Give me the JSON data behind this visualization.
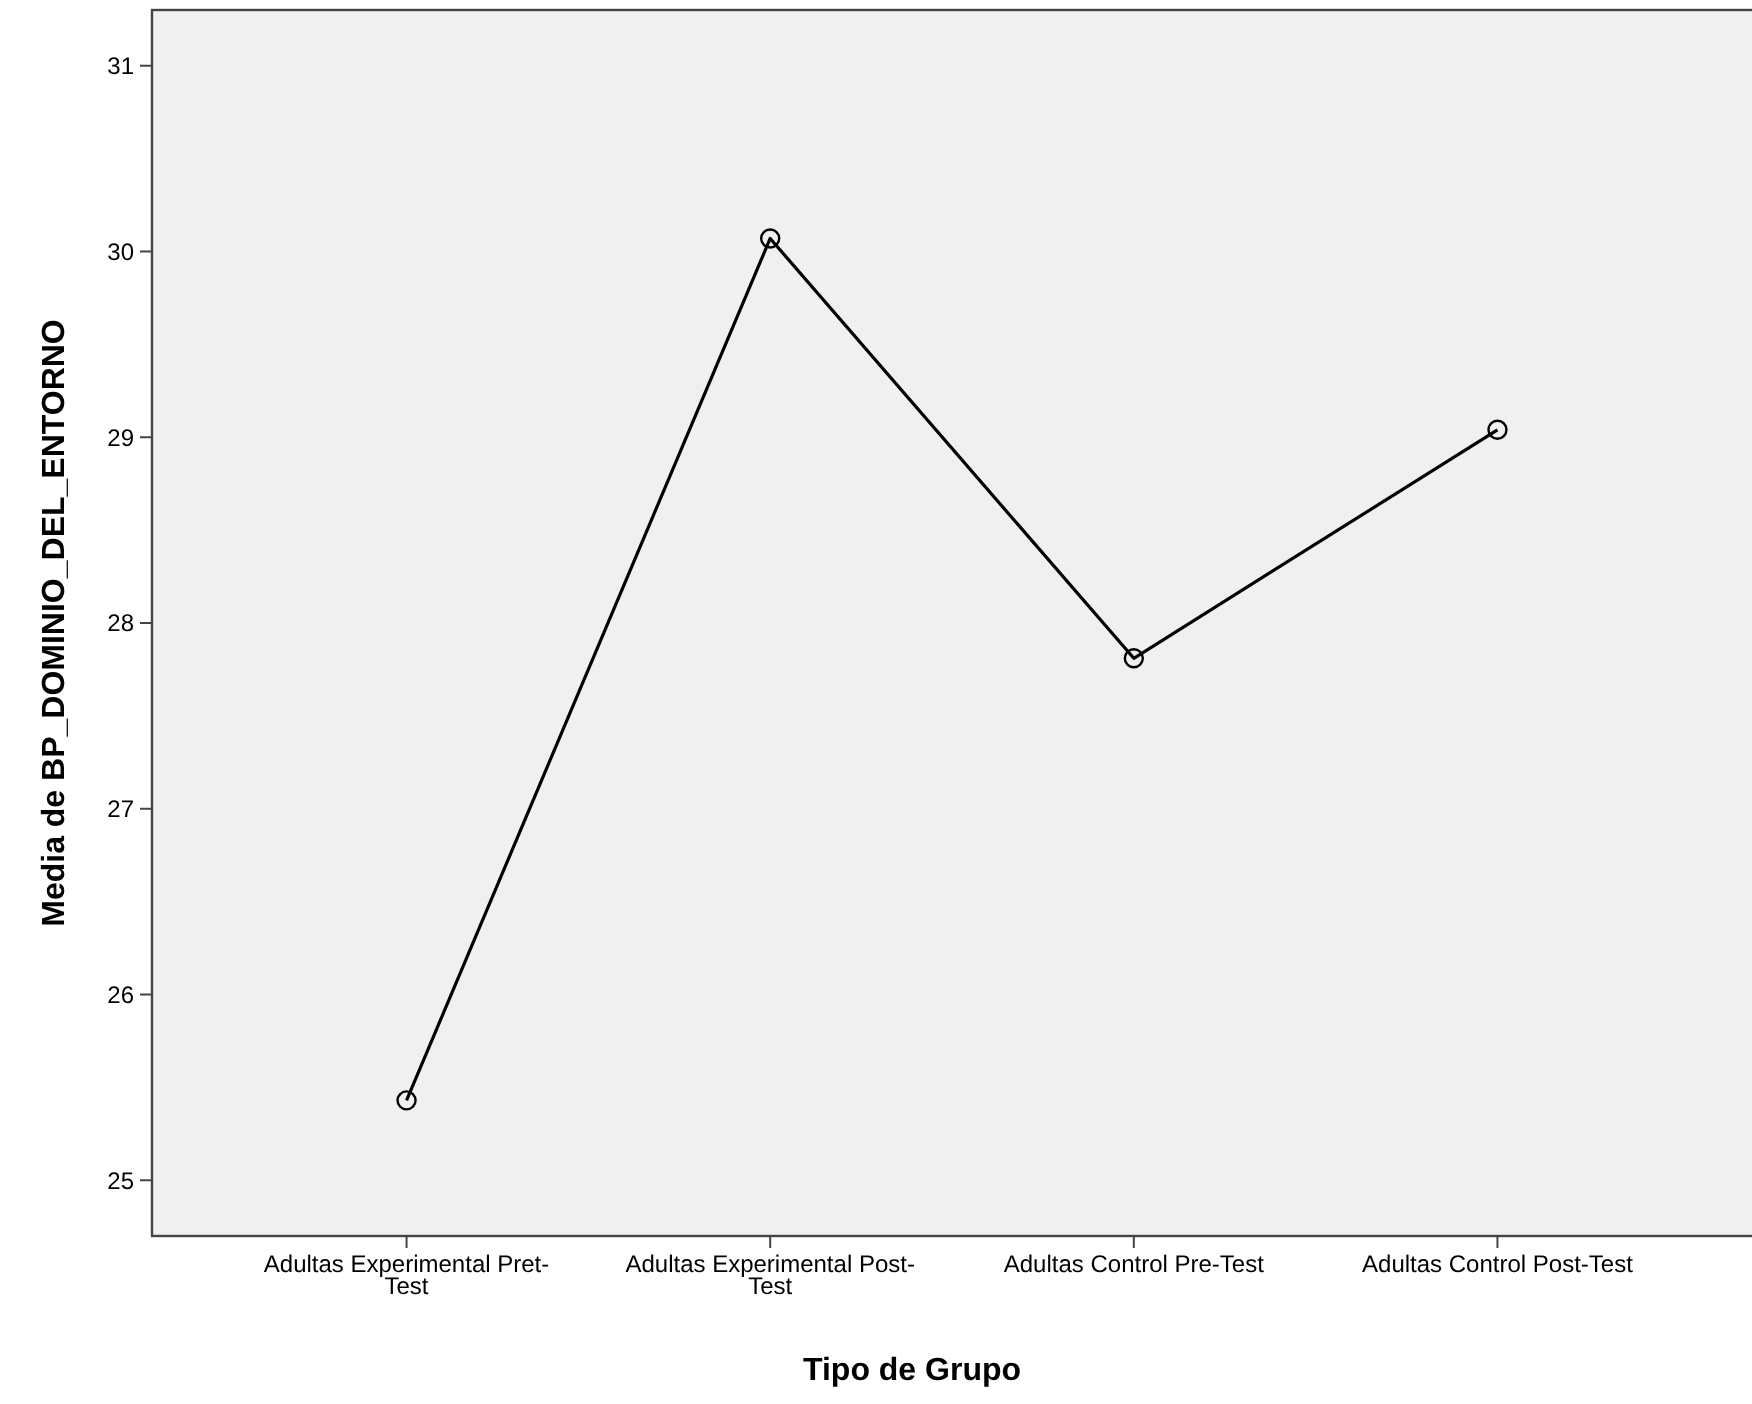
{
  "chart_data": {
    "type": "line",
    "xlabel": "Tipo de Grupo",
    "ylabel": "Media de BP_DOMINIO_DEL_ENTORNO",
    "categories": [
      "Adultas Experimental Pret-Test",
      "Adultas Experimental Post-Test",
      "Adultas Control Pre-Test",
      "Adultas Control Post-Test"
    ],
    "series": [
      {
        "color": "#000000",
        "values": [
          25.43,
          30.07,
          27.81,
          29.04
        ]
      }
    ],
    "ylim": [
      24.7,
      31.3
    ],
    "yticks": [
      25,
      26,
      27,
      28,
      29,
      30,
      31
    ],
    "grid": false,
    "marker": "circle",
    "line_style": "solid"
  }
}
